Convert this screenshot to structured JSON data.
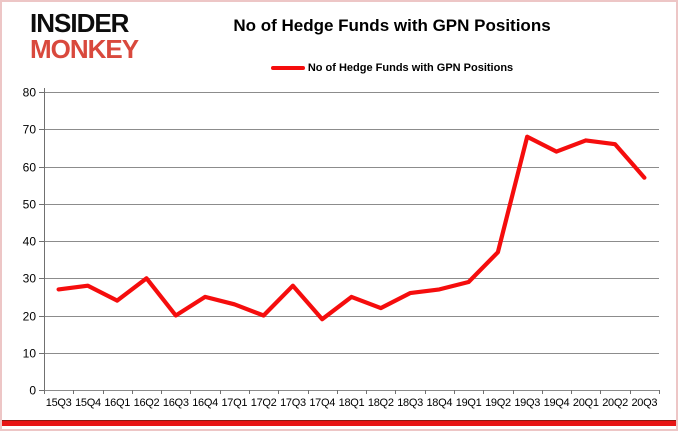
{
  "brand": {
    "name_line1": "INSIDER",
    "name_line2": "MONKEY",
    "line1_color": "#0d0d0d",
    "line2_color": "#d9493d"
  },
  "header": {
    "title": "No of Hedge Funds with GPN Positions"
  },
  "legend": {
    "label": "No of Hedge Funds with GPN Positions"
  },
  "accents": {
    "bottom_bar_color": "#e81414",
    "frame_color": "#edc6c6",
    "gridline_color": "#8c8c8c",
    "axis_color": "#707070"
  },
  "chart_data": {
    "type": "line",
    "title": "No of Hedge Funds with GPN Positions",
    "categories": [
      "15Q3",
      "15Q4",
      "16Q1",
      "16Q2",
      "16Q3",
      "16Q4",
      "17Q1",
      "17Q2",
      "17Q3",
      "17Q4",
      "18Q1",
      "18Q2",
      "18Q3",
      "18Q4",
      "19Q1",
      "19Q2",
      "19Q3",
      "19Q4",
      "20Q1",
      "20Q2",
      "20Q3"
    ],
    "series": [
      {
        "name": "No of Hedge Funds with GPN Positions",
        "color": "#f50d0d",
        "values": [
          27,
          28,
          24,
          30,
          20,
          25,
          23,
          20,
          28,
          19,
          25,
          22,
          26,
          27,
          29,
          37,
          68,
          64,
          67,
          66,
          57
        ]
      }
    ],
    "ylim": [
      0,
      80
    ],
    "yticks": [
      0,
      10,
      20,
      30,
      40,
      50,
      60,
      70,
      80
    ],
    "xlabel": "",
    "ylabel": "",
    "grid": "horizontal",
    "legend_position": "top-center",
    "line_width": 4
  }
}
